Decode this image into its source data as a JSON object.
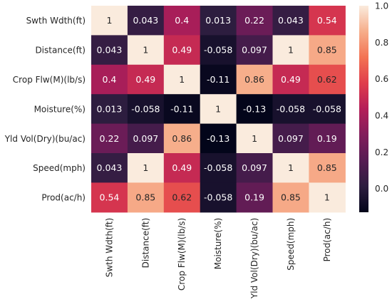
{
  "chart_data": {
    "type": "heatmap",
    "labels": [
      "Swth Wdth(ft)",
      "Distance(ft)",
      "Crop Flw(M)(lb/s)",
      "Moisture(%)",
      "Yld Vol(Dry)(bu/ac)",
      "Speed(mph)",
      "Prod(ac/h)"
    ],
    "values": [
      [
        1,
        0.043,
        0.4,
        0.013,
        0.22,
        0.043,
        0.54
      ],
      [
        0.043,
        1,
        0.49,
        -0.058,
        0.097,
        1,
        0.85
      ],
      [
        0.4,
        0.49,
        1,
        -0.11,
        0.86,
        0.49,
        0.62
      ],
      [
        0.013,
        -0.058,
        -0.11,
        1,
        -0.13,
        -0.058,
        -0.058
      ],
      [
        0.22,
        0.097,
        0.86,
        -0.13,
        1,
        0.097,
        0.19
      ],
      [
        0.043,
        1,
        0.49,
        -0.058,
        0.097,
        1,
        0.85
      ],
      [
        0.54,
        0.85,
        0.62,
        -0.058,
        0.19,
        0.85,
        1
      ]
    ],
    "cell_labels": [
      [
        "1",
        "0.043",
        "0.4",
        "0.013",
        "0.22",
        "0.043",
        "0.54"
      ],
      [
        "0.043",
        "1",
        "0.49",
        "-0.058",
        "0.097",
        "1",
        "0.85"
      ],
      [
        "0.4",
        "0.49",
        "1",
        "-0.11",
        "0.86",
        "0.49",
        "0.62"
      ],
      [
        "0.013",
        "-0.058",
        "-0.11",
        "1",
        "-0.13",
        "-0.058",
        "-0.058"
      ],
      [
        "0.22",
        "0.097",
        "0.86",
        "-0.13",
        "1",
        "0.097",
        "0.19"
      ],
      [
        "0.043",
        "1",
        "0.49",
        "-0.058",
        "0.097",
        "1",
        "0.85"
      ],
      [
        "0.54",
        "0.85",
        "0.62",
        "-0.058",
        "0.19",
        "0.85",
        "1"
      ]
    ],
    "vmin": -0.13,
    "vmax": 1.0,
    "colormap": "rocket",
    "colorbar_ticks": [
      0.0,
      0.2,
      0.4,
      0.6,
      0.8,
      1.0
    ],
    "colorbar_tick_labels": [
      "0.0",
      "0.2",
      "0.4",
      "0.6",
      "0.8",
      "1.0"
    ],
    "title": "",
    "xlabel": "",
    "ylabel": ""
  }
}
